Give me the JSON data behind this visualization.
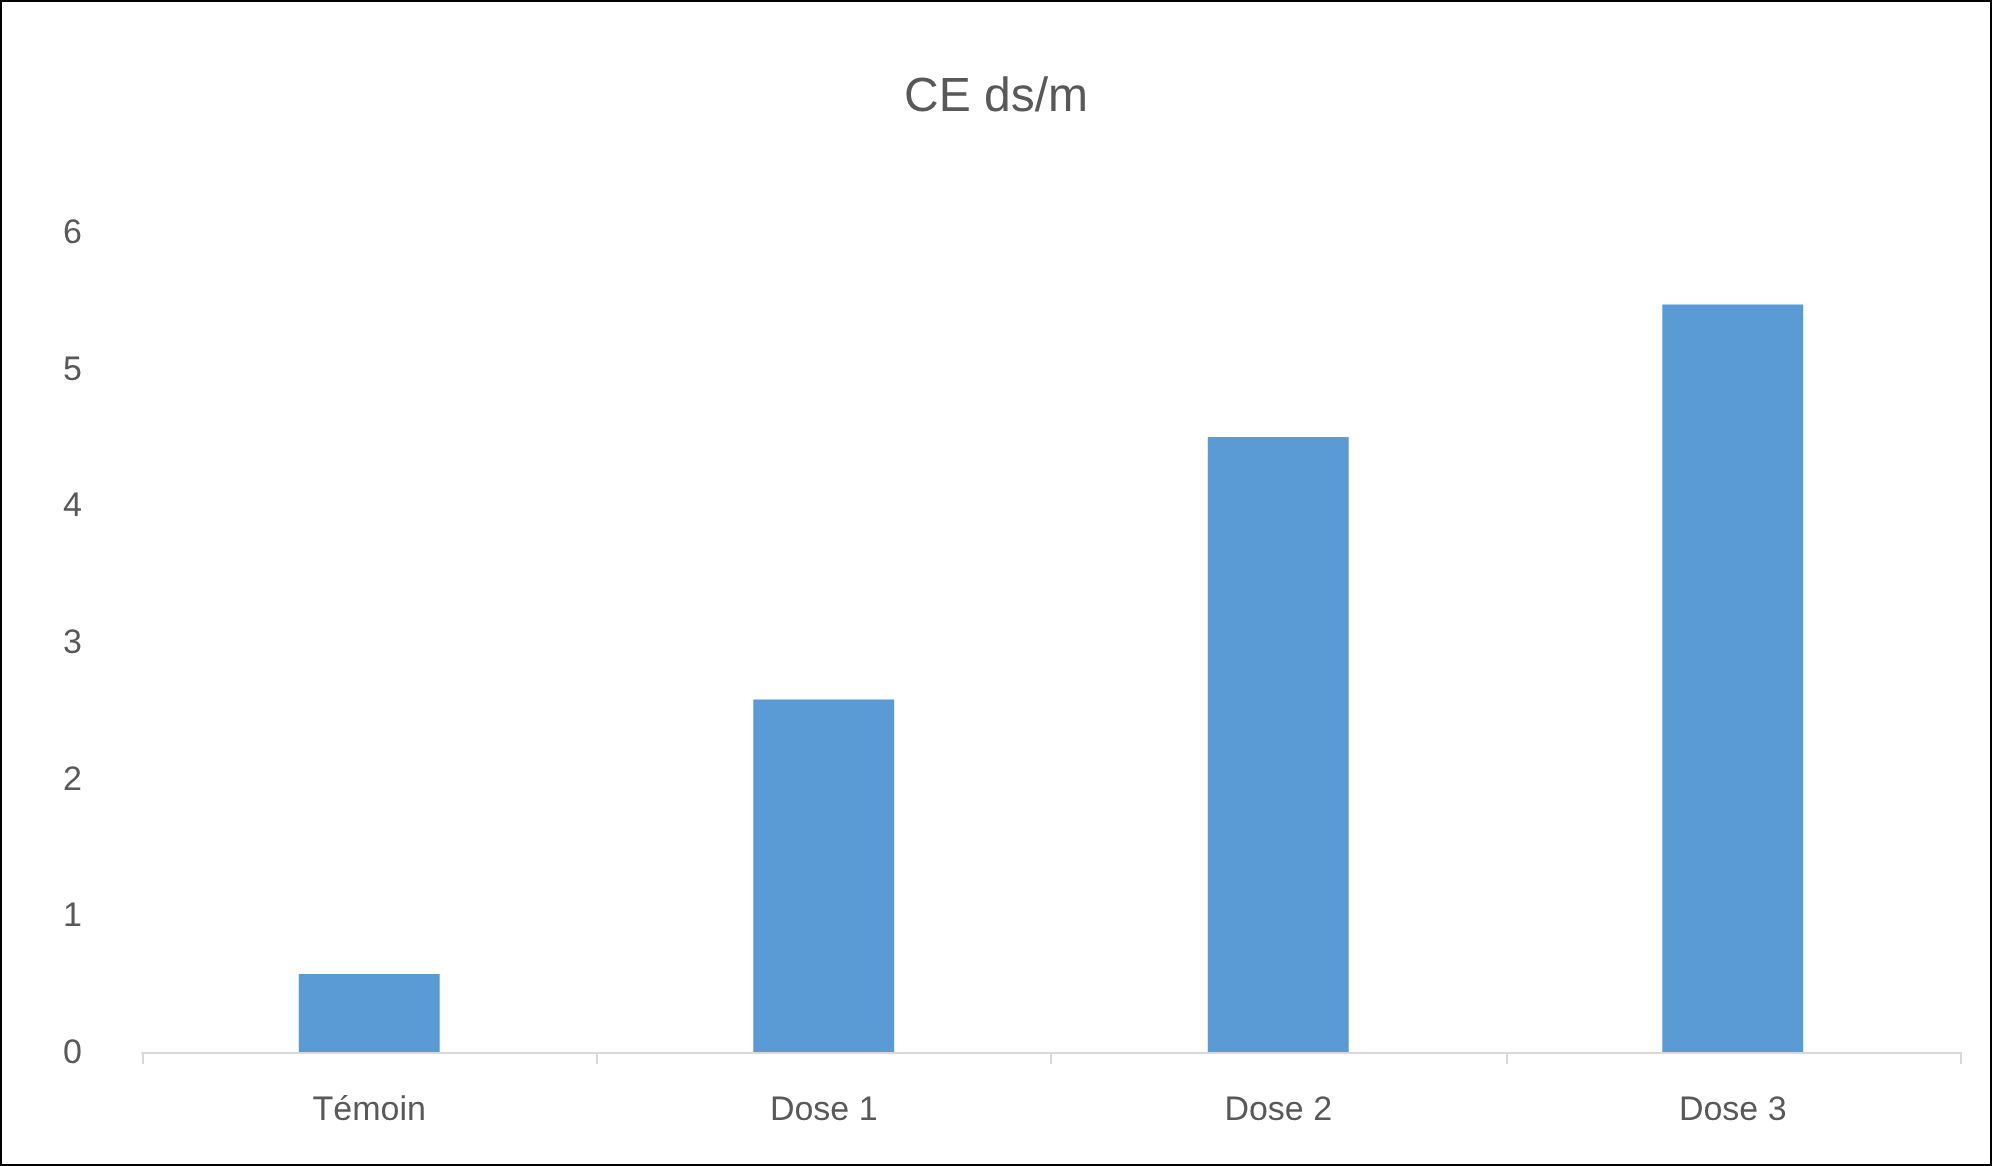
{
  "chart_data": {
    "type": "bar",
    "title": "CE ds/m",
    "categories": [
      "Témoin",
      "Dose 1",
      "Dose 2",
      "Dose 3"
    ],
    "values": [
      0.57,
      2.58,
      4.5,
      5.47
    ],
    "color": "#5b9bd5",
    "ylim": [
      0,
      6
    ],
    "yticks": [
      0,
      1,
      2,
      3,
      4,
      5,
      6
    ],
    "grid": false
  }
}
